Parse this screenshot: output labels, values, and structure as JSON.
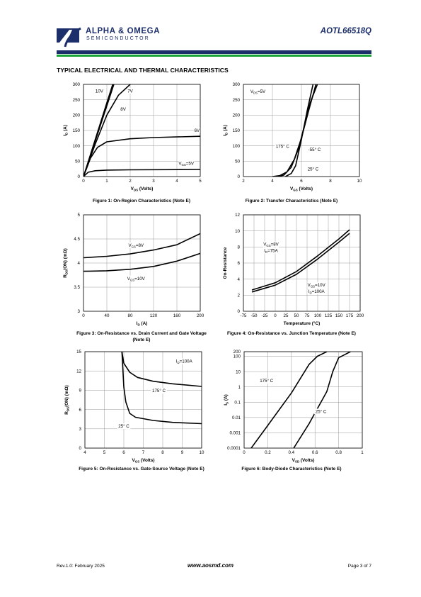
{
  "header": {
    "brand_line1": "ALPHA & OMEGA",
    "brand_line2": "SEMICONDUCTOR",
    "part_number": "AOTL66518Q"
  },
  "section_title": "TYPICAL ELECTRICAL AND THERMAL CHARACTERISTICS",
  "footer": {
    "revision": "Rev.1.0: February 2025",
    "website": "www.aosmd.com",
    "page": "Page 3 of 7"
  },
  "colors": {
    "brand_blue": "#1c2f6b",
    "brand_green": "#18a336"
  },
  "chart_data": [
    {
      "id": "fig1",
      "type": "line",
      "caption": "Figure 1: On-Region Characteristics (Note E)",
      "xlabel": "VDS (Volts)",
      "ylabel": "ID (A)",
      "xlim": [
        0,
        5
      ],
      "ylim": [
        0,
        300
      ],
      "xticks": [
        0,
        1,
        2,
        3,
        4,
        5
      ],
      "yticks": [
        0,
        50,
        100,
        150,
        200,
        250,
        300
      ],
      "series": [
        {
          "name": "10V",
          "points": [
            [
              0,
              0
            ],
            [
              0.5,
              120
            ],
            [
              1,
              240
            ],
            [
              1.25,
              300
            ]
          ]
        },
        {
          "name": "8V",
          "points": [
            [
              0,
              0
            ],
            [
              0.5,
              115
            ],
            [
              1,
              230
            ],
            [
              1.3,
              300
            ]
          ]
        },
        {
          "name": "7V",
          "points": [
            [
              0,
              0
            ],
            [
              0.5,
              105
            ],
            [
              1,
              200
            ],
            [
              1.5,
              265
            ],
            [
              2,
              300
            ]
          ]
        },
        {
          "name": "6V",
          "points": [
            [
              0,
              0
            ],
            [
              0.3,
              60
            ],
            [
              0.6,
              95
            ],
            [
              1,
              113
            ],
            [
              2,
              123
            ],
            [
              3,
              127
            ],
            [
              4,
              129
            ],
            [
              5,
              131
            ]
          ]
        },
        {
          "name": "VGS=5V",
          "points": [
            [
              0,
              0
            ],
            [
              0.2,
              14
            ],
            [
              0.5,
              19
            ],
            [
              1,
              21
            ],
            [
              2,
              22
            ],
            [
              5,
              23
            ]
          ]
        }
      ],
      "labels": [
        {
          "text": "10V",
          "x": 0.68,
          "y": 274
        },
        {
          "text": "7V",
          "x": 2.0,
          "y": 274
        },
        {
          "text": "8V",
          "x": 1.7,
          "y": 215
        },
        {
          "text": "6V",
          "x": 4.86,
          "y": 145
        },
        {
          "text": "VGS=5V",
          "x": 4.4,
          "y": 38
        }
      ]
    },
    {
      "id": "fig2",
      "type": "line",
      "caption": "Figure 2: Transfer Characteristics (Note E)",
      "xlabel": "VGS (Volts)",
      "ylabel": "ID (A)",
      "xlim": [
        2,
        10
      ],
      "ylim": [
        0,
        300
      ],
      "xticks": [
        2,
        4,
        6,
        8,
        10
      ],
      "yticks": [
        0,
        50,
        100,
        150,
        200,
        250,
        300
      ],
      "series": [
        {
          "name": "175°C",
          "points": [
            [
              4,
              0
            ],
            [
              4.5,
              3
            ],
            [
              5,
              15
            ],
            [
              5.5,
              55
            ],
            [
              6,
              125
            ],
            [
              6.5,
              215
            ],
            [
              7,
              300
            ]
          ]
        },
        {
          "name": "-55°C",
          "points": [
            [
              4.9,
              0
            ],
            [
              5.3,
              10
            ],
            [
              5.6,
              35
            ],
            [
              6,
              120
            ],
            [
              6.4,
              215
            ],
            [
              6.8,
              300
            ]
          ]
        },
        {
          "name": "25°C",
          "points": [
            [
              4.4,
              0
            ],
            [
              4.8,
              5
            ],
            [
              5.3,
              30
            ],
            [
              5.8,
              90
            ],
            [
              6.2,
              165
            ],
            [
              6.6,
              240
            ],
            [
              7.1,
              300
            ]
          ]
        }
      ],
      "labels": [
        {
          "text": "VDS=5V",
          "x": 3.0,
          "y": 272
        },
        {
          "text": "175° C",
          "x": 4.7,
          "y": 93
        },
        {
          "text": "-55° C",
          "x": 6.9,
          "y": 83
        },
        {
          "text": "25° C",
          "x": 6.8,
          "y": 20
        }
      ]
    },
    {
      "id": "fig3",
      "type": "line",
      "caption": "Figure 3: On-Resistance vs. Drain Current and Gate Voltage (Note E)",
      "xlabel": "ID (A)",
      "ylabel": "RDS(ON) (mΩ)",
      "xlim": [
        0,
        200
      ],
      "ylim": [
        3,
        5
      ],
      "xticks": [
        0,
        40,
        80,
        120,
        160,
        200
      ],
      "yticks": [
        3,
        3.5,
        4,
        4.5,
        5
      ],
      "series": [
        {
          "name": "VGS=8V",
          "points": [
            [
              0,
              4.11
            ],
            [
              40,
              4.14
            ],
            [
              80,
              4.19
            ],
            [
              120,
              4.27
            ],
            [
              160,
              4.38
            ],
            [
              200,
              4.61
            ]
          ]
        },
        {
          "name": "VGS=10V",
          "points": [
            [
              0,
              3.83
            ],
            [
              40,
              3.84
            ],
            [
              80,
              3.87
            ],
            [
              120,
              3.93
            ],
            [
              160,
              4.04
            ],
            [
              200,
              4.2
            ]
          ]
        }
      ],
      "labels": [
        {
          "text": "VGS=8V",
          "x": 90,
          "y": 4.34
        },
        {
          "text": "VGS=10V",
          "x": 90,
          "y": 3.65
        }
      ]
    },
    {
      "id": "fig4",
      "type": "line",
      "caption": "Figure 4: On-Resistance vs. Junction Temperature (Note E)",
      "xlabel": "Temperature (°C)",
      "ylabel": "On-Resistance",
      "xlim": [
        -75,
        200
      ],
      "ylim": [
        0,
        12
      ],
      "xticks": [
        -75,
        -50,
        -25,
        0,
        25,
        50,
        75,
        100,
        125,
        150,
        175,
        200
      ],
      "yticks": [
        0,
        2,
        4,
        6,
        8,
        10,
        12
      ],
      "series": [
        {
          "name": "VGS=8V, ID=75A",
          "points": [
            [
              -55,
              2.65
            ],
            [
              0,
              3.55
            ],
            [
              50,
              4.95
            ],
            [
              100,
              6.9
            ],
            [
              150,
              9.0
            ],
            [
              175,
              10.15
            ]
          ]
        },
        {
          "name": "VGS=10V, ID=100A",
          "points": [
            [
              -55,
              2.4
            ],
            [
              0,
              3.25
            ],
            [
              50,
              4.6
            ],
            [
              100,
              6.5
            ],
            [
              150,
              8.6
            ],
            [
              175,
              9.7
            ]
          ]
        }
      ],
      "labels": [
        {
          "text": "VGS=8V",
          "x": -10,
          "y": 8.15
        },
        {
          "text": "ID=75A",
          "x": -10,
          "y": 7.35
        },
        {
          "text": "VGS=10V",
          "x": 97,
          "y": 3.1
        },
        {
          "text": "ID=100A",
          "x": 97,
          "y": 2.3
        }
      ]
    },
    {
      "id": "fig5",
      "type": "line",
      "caption": "Figure 5: On-Resistance vs. Gate-Source Voltage (Note E)",
      "xlabel": "VGS (Volts)",
      "ylabel": "RDS(ON) (mΩ)",
      "xlim": [
        4,
        10
      ],
      "ylim": [
        0,
        15
      ],
      "xticks": [
        4,
        5,
        6,
        7,
        8,
        9,
        10
      ],
      "yticks": [
        0,
        3,
        6,
        9,
        12,
        15
      ],
      "series": [
        {
          "name": "175°C",
          "points": [
            [
              5.9,
              15
            ],
            [
              6.0,
              13.2
            ],
            [
              6.3,
              11.8
            ],
            [
              6.7,
              11.0
            ],
            [
              7.5,
              10.4
            ],
            [
              8.5,
              10.0
            ],
            [
              10,
              9.6
            ]
          ]
        },
        {
          "name": "25°C",
          "points": [
            [
              5.9,
              15
            ],
            [
              6.0,
              9.5
            ],
            [
              6.1,
              7.2
            ],
            [
              6.3,
              5.4
            ],
            [
              6.6,
              4.8
            ],
            [
              7.5,
              4.3
            ],
            [
              8.5,
              4.0
            ],
            [
              10,
              3.8
            ]
          ]
        }
      ],
      "labels": [
        {
          "text": "ID=100A",
          "x": 9.1,
          "y": 13.3
        },
        {
          "text": "175° C",
          "x": 7.8,
          "y": 8.7
        },
        {
          "text": "25° C",
          "x": 6.0,
          "y": 3.2
        }
      ]
    },
    {
      "id": "fig6",
      "type": "line",
      "caption": "Figure 6: Body-Diode Characteristics (Note E)",
      "xlabel": "VSD (Volts)",
      "ylabel": "IS (A)",
      "xlim": [
        0,
        1
      ],
      "ylim": [
        0.0001,
        200
      ],
      "yscale": "log",
      "xticks": [
        0,
        0.2,
        0.4,
        0.6,
        0.8,
        1.0
      ],
      "yticks": [
        0.0001,
        0.001,
        0.01,
        0.1,
        1,
        10,
        100,
        200
      ],
      "series": [
        {
          "name": "175°C",
          "points": [
            [
              0.06,
              0.0001
            ],
            [
              0.2,
              0.003
            ],
            [
              0.4,
              0.4
            ],
            [
              0.55,
              30
            ],
            [
              0.62,
              100
            ],
            [
              0.7,
              200
            ]
          ]
        },
        {
          "name": "25°C",
          "points": [
            [
              0.42,
              0.0001
            ],
            [
              0.55,
              0.004
            ],
            [
              0.7,
              0.5
            ],
            [
              0.75,
              10
            ],
            [
              0.8,
              80
            ],
            [
              0.9,
              200
            ]
          ]
        }
      ],
      "labels": [
        {
          "text": "175° C",
          "x": 0.19,
          "y": 2
        },
        {
          "text": "25° C",
          "x": 0.65,
          "y": 0.02
        }
      ]
    }
  ]
}
